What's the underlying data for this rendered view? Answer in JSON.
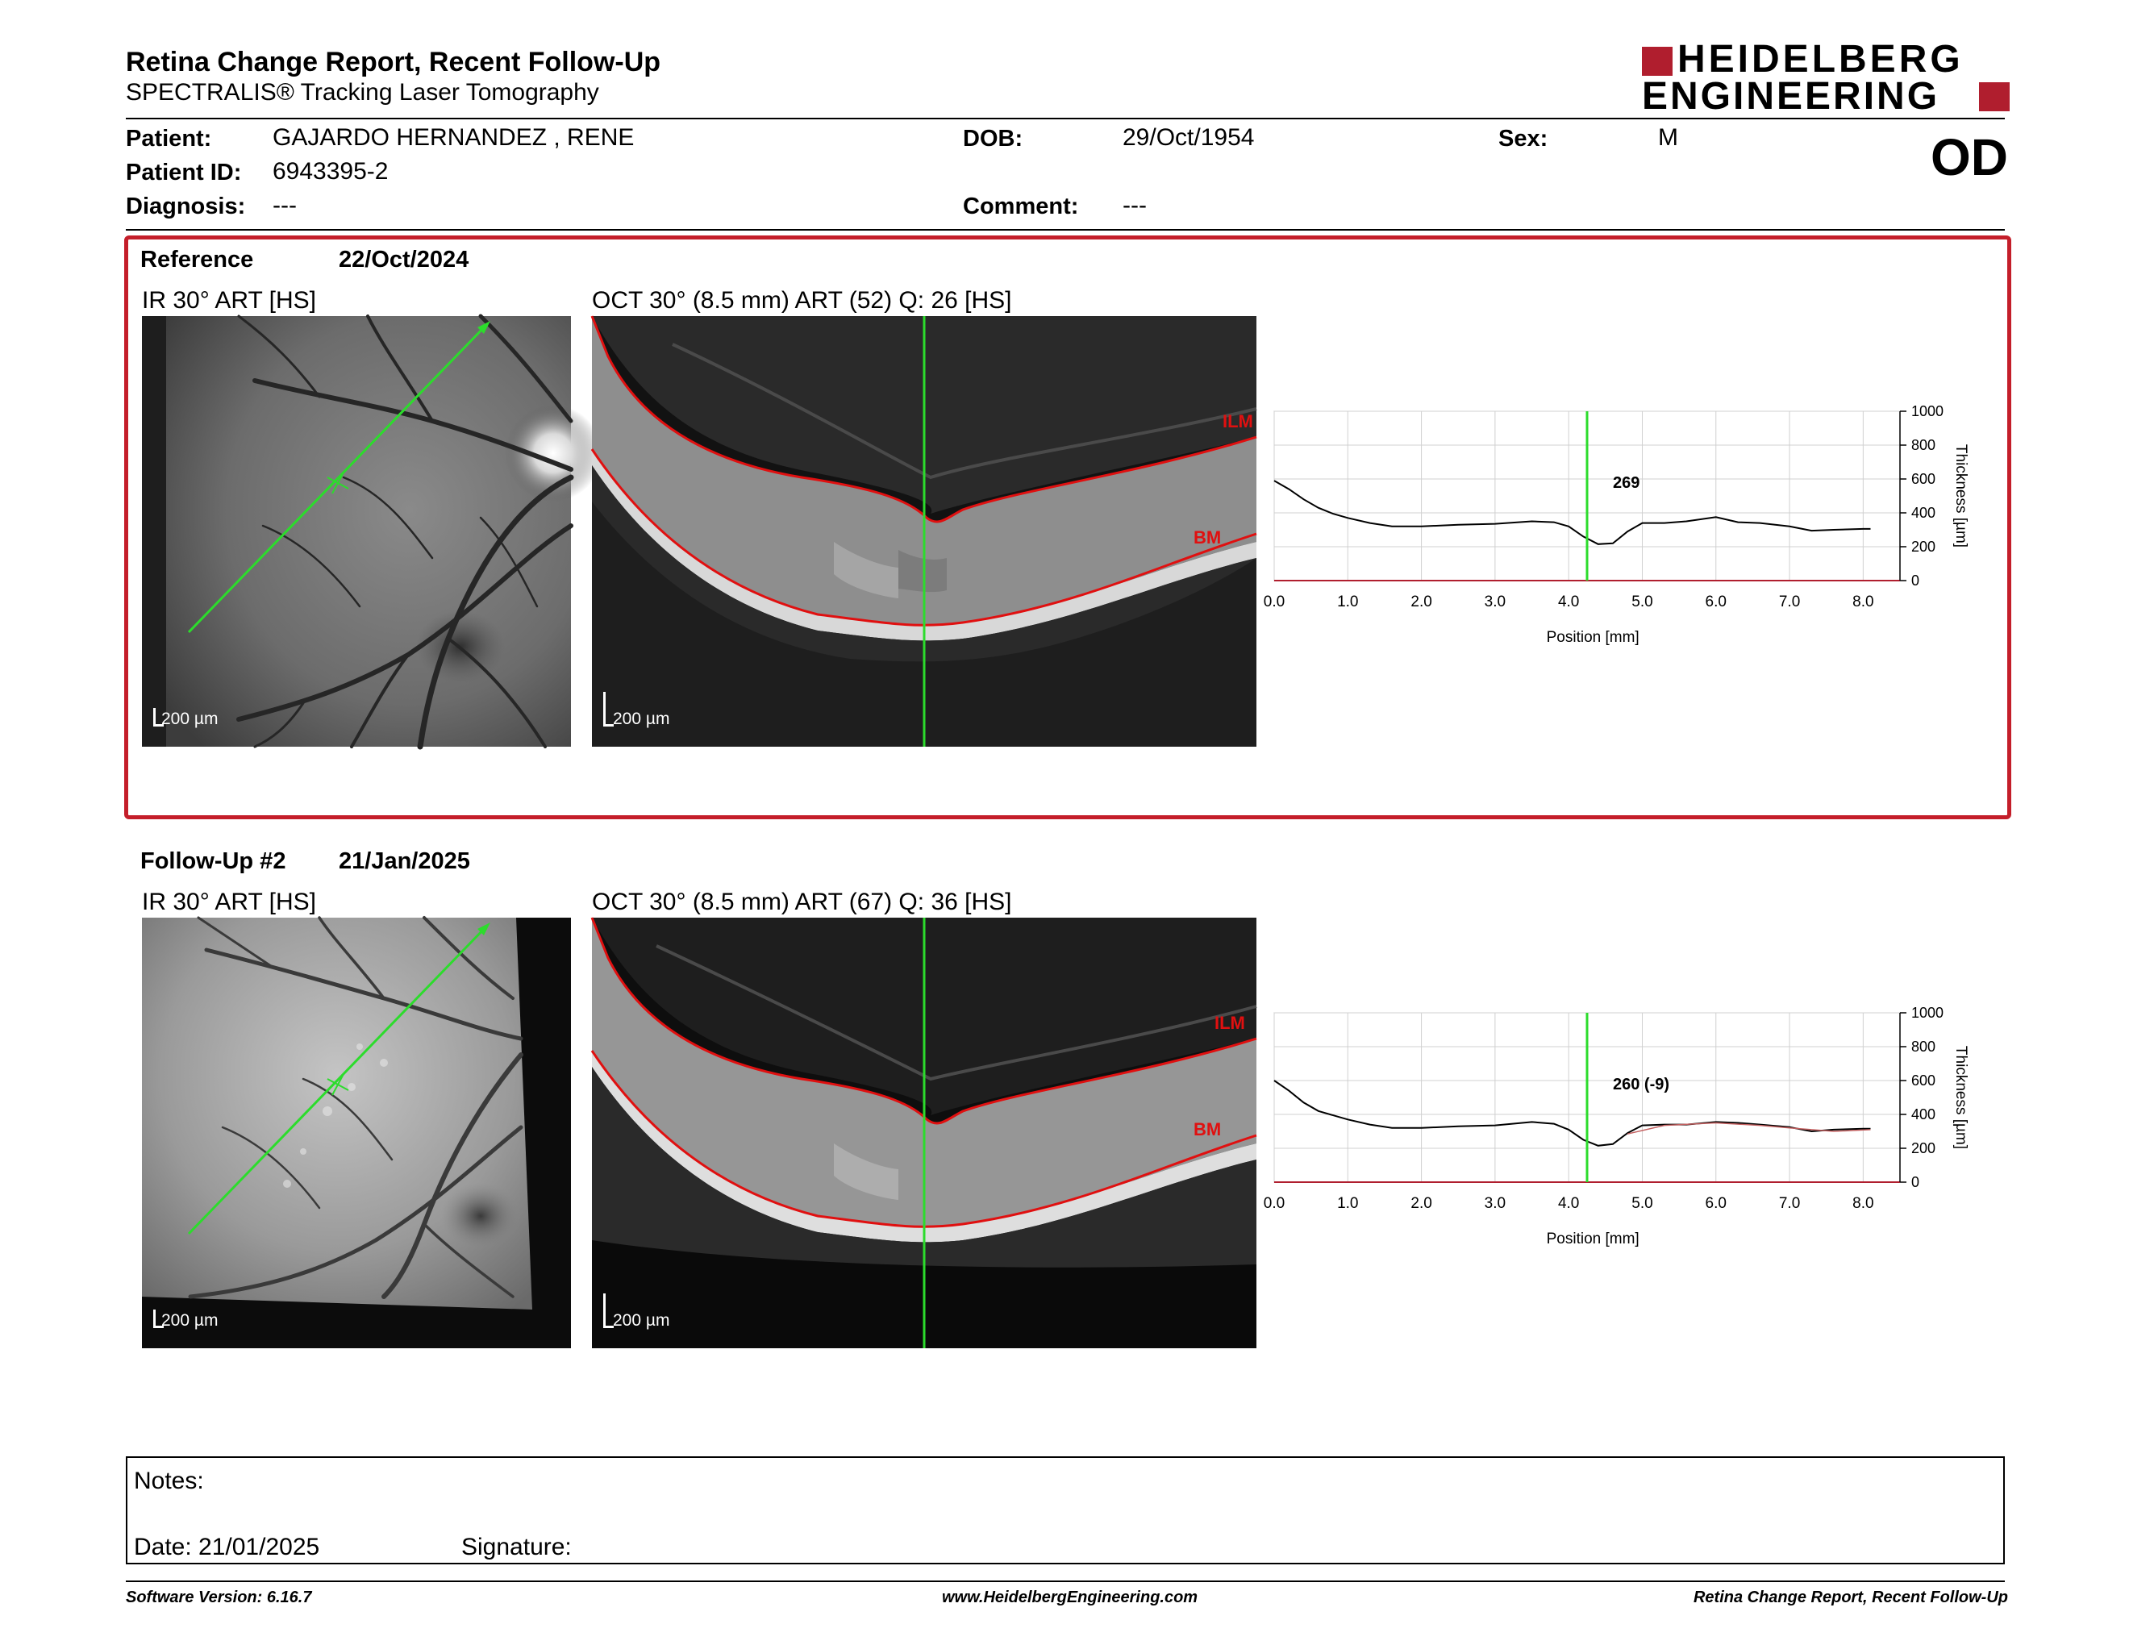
{
  "header": {
    "title": "Retina Change Report, Recent Follow-Up",
    "subtitle": "SPECTRALIS® Tracking Laser Tomography",
    "logo_line1": "HEIDELBERG",
    "logo_line2": "ENGINEERING",
    "eye": "OD"
  },
  "patient": {
    "patient_label": "Patient:",
    "patient_value": "GAJARDO HERNANDEZ , RENE",
    "id_label": "Patient ID:",
    "id_value": "6943395-2",
    "diagnosis_label": "Diagnosis:",
    "diagnosis_value": "---",
    "dob_label": "DOB:",
    "dob_value": "29/Oct/1954",
    "comment_label": "Comment:",
    "comment_value": "---",
    "sex_label": "Sex:",
    "sex_value": "M"
  },
  "reference": {
    "label": "Reference",
    "date": "22/Oct/2024",
    "ir_title": "IR 30° ART [HS]",
    "oct_title": "OCT 30° (8.5 mm) ART (52) Q: 26 [HS]",
    "scale": "200 µm",
    "ilm": "ILM",
    "bm": "BM",
    "cursor_value": "269"
  },
  "followup": {
    "label": "Follow-Up #2",
    "date": "21/Jan/2025",
    "ir_title": "IR 30° ART [HS]",
    "oct_title": "OCT 30° (8.5 mm) ART (67) Q: 36 [HS]",
    "scale": "200 µm",
    "ilm": "ILM",
    "bm": "BM",
    "cursor_value": "260 (-9)"
  },
  "notes": {
    "notes_label": "Notes:",
    "date_label": "Date: 21/01/2025",
    "signature_label": "Signature:"
  },
  "footer": {
    "software": "Software Version: 6.16.7",
    "website": "www.HeidelbergEngineering.com",
    "report": "Retina Change Report, Recent Follow-Up"
  },
  "colors": {
    "brand_red": "#b01e2e",
    "frame_red": "#c41e2a",
    "segmentation_red": "#e01010",
    "scan_green": "#2cdc2c"
  },
  "chart_data": [
    {
      "type": "line",
      "title": "",
      "xlabel": "Position [mm]",
      "ylabel": "Thickness [µm]",
      "xlim": [
        0,
        8.5
      ],
      "ylim": [
        0,
        1000
      ],
      "x_ticks": [
        "0.0",
        "1.0",
        "2.0",
        "3.0",
        "4.0",
        "5.0",
        "6.0",
        "7.0",
        "8.0"
      ],
      "y_ticks": [
        "0",
        "200",
        "400",
        "600",
        "800",
        "1000"
      ],
      "grid": true,
      "cursor_x": 4.25,
      "series": [
        {
          "x": [
            0.0,
            0.2,
            0.4,
            0.6,
            0.8,
            1.0,
            1.3,
            1.6,
            2.0,
            2.5,
            3.0,
            3.5,
            3.8,
            4.0,
            4.2,
            4.4,
            4.6,
            4.8,
            5.0,
            5.3,
            5.6,
            6.0,
            6.3,
            6.6,
            7.0,
            7.3,
            7.6,
            8.0,
            8.1
          ],
          "y": [
            590,
            540,
            480,
            430,
            395,
            370,
            340,
            320,
            320,
            330,
            335,
            350,
            345,
            320,
            260,
            215,
            220,
            290,
            340,
            340,
            350,
            375,
            345,
            340,
            320,
            295,
            300,
            305,
            305
          ]
        }
      ]
    },
    {
      "type": "line",
      "title": "",
      "xlabel": "Position [mm]",
      "ylabel": "Thickness [µm]",
      "xlim": [
        0,
        8.5
      ],
      "ylim": [
        0,
        1000
      ],
      "x_ticks": [
        "0.0",
        "1.0",
        "2.0",
        "3.0",
        "4.0",
        "5.0",
        "6.0",
        "7.0",
        "8.0"
      ],
      "y_ticks": [
        "0",
        "200",
        "400",
        "600",
        "800",
        "1000"
      ],
      "grid": true,
      "cursor_x": 4.25,
      "series": [
        {
          "x": [
            0.0,
            0.2,
            0.4,
            0.6,
            0.8,
            1.0,
            1.3,
            1.6,
            2.0,
            2.5,
            3.0,
            3.5,
            3.8,
            4.0,
            4.2,
            4.4,
            4.6,
            4.8,
            5.0,
            5.3,
            5.6,
            6.0,
            6.3,
            6.6,
            7.0,
            7.3,
            7.6,
            8.0,
            8.1
          ],
          "y": [
            600,
            540,
            470,
            420,
            395,
            370,
            340,
            320,
            320,
            330,
            335,
            355,
            345,
            310,
            250,
            215,
            225,
            290,
            335,
            340,
            340,
            355,
            350,
            340,
            325,
            300,
            310,
            315,
            315
          ]
        },
        {
          "x": [
            4.8,
            5.3,
            6.0,
            6.6,
            7.0,
            7.6,
            8.1
          ],
          "y": [
            285,
            335,
            350,
            335,
            320,
            300,
            310
          ]
        }
      ]
    }
  ]
}
